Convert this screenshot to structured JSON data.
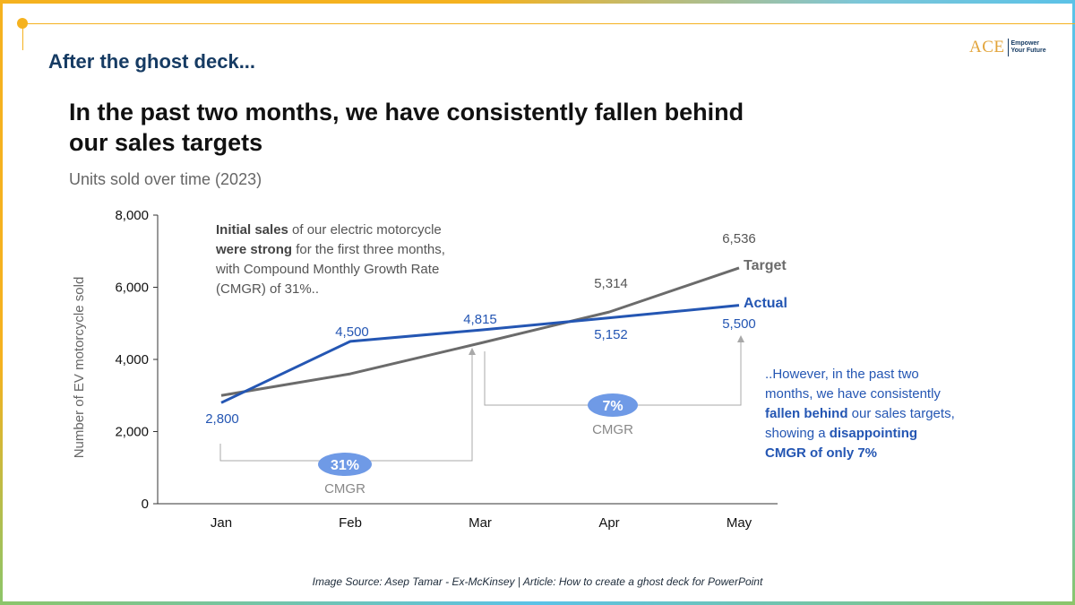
{
  "slide": {
    "heading": "After the ghost deck...",
    "logo_mark": "ACE",
    "logo_tag_line1": "Empower",
    "logo_tag_line2": "Your Future",
    "source": "Image Source: Asep Tamar - Ex-McKinsey  | Article: How to create a ghost deck for PowerPoint"
  },
  "colors": {
    "heading": "#163b63",
    "actual": "#2456b3",
    "target": "#6b6b6b",
    "badge": "#6f9ae6",
    "accent": "#f5b21f"
  },
  "chart_data": {
    "type": "line",
    "title_line1": "In the past two months, we have consistently fallen behind",
    "title_line2": "our sales targets",
    "subtitle": "Units sold over time (2023)",
    "ylabel": "Number of EV motorcycle sold",
    "xlabel": "",
    "ylim": [
      0,
      8000
    ],
    "yticks": [
      0,
      2000,
      4000,
      6000,
      8000
    ],
    "ytick_labels": [
      "0",
      "2,000",
      "4,000",
      "6,000",
      "8,000"
    ],
    "categories": [
      "Jan",
      "Feb",
      "Mar",
      "Apr",
      "May"
    ],
    "series": [
      {
        "name": "Target",
        "values": [
          3000,
          3600,
          4450,
          5314,
          6536
        ],
        "labels": [
          "",
          "",
          "",
          "5,314",
          "6,536"
        ]
      },
      {
        "name": "Actual",
        "values": [
          2800,
          4500,
          4815,
          5152,
          5500
        ],
        "labels": [
          "2,800",
          "4,500",
          "4,815",
          "5,152",
          "5,500"
        ]
      }
    ],
    "annotations": {
      "left_note": [
        [
          {
            "t": "Initial sales",
            "b": true
          },
          {
            "t": " of our electric motorcycle",
            "b": false
          }
        ],
        [
          {
            "t": "were strong",
            "b": true
          },
          {
            "t": " for the first three months,",
            "b": false
          }
        ],
        [
          {
            "t": "with Compound Monthly Growth Rate",
            "b": false
          }
        ],
        [
          {
            "t": "(CMGR) of 31%..",
            "b": false
          }
        ]
      ],
      "right_note": [
        [
          {
            "t": "..However, in the past two",
            "b": false
          }
        ],
        [
          {
            "t": "months, we have consistently",
            "b": false
          }
        ],
        [
          {
            "t": "fallen behind",
            "b": true
          },
          {
            "t": " our sales targets,",
            "b": false
          }
        ],
        [
          {
            "t": "showing a ",
            "b": false
          },
          {
            "t": "disappointing",
            "b": true
          }
        ],
        [
          {
            "t": "CMGR of only 7%",
            "b": true
          }
        ]
      ],
      "cmgr_early": {
        "value": "31%",
        "label": "CMGR"
      },
      "cmgr_late": {
        "value": "7%",
        "label": "CMGR"
      }
    }
  }
}
